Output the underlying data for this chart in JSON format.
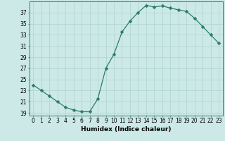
{
  "title": "",
  "xlabel": "Humidex (Indice chaleur)",
  "ylabel": "",
  "x": [
    0,
    1,
    2,
    3,
    4,
    5,
    6,
    7,
    8,
    9,
    10,
    11,
    12,
    13,
    14,
    15,
    16,
    17,
    18,
    19,
    20,
    21,
    22,
    23
  ],
  "y": [
    24,
    23,
    22,
    21,
    20,
    19.5,
    19.2,
    19.2,
    21.5,
    27,
    29.5,
    33.5,
    35.5,
    37,
    38.3,
    38,
    38.2,
    37.8,
    37.5,
    37.2,
    36,
    34.5,
    33,
    31.5
  ],
  "line_color": "#2d7a6e",
  "marker": "D",
  "marker_size": 2.5,
  "bg_color": "#cce9e7",
  "grid_color": "#aad4d0",
  "ylim": [
    18.5,
    39
  ],
  "xlim": [
    -0.5,
    23.5
  ],
  "yticks": [
    19,
    21,
    23,
    25,
    27,
    29,
    31,
    33,
    35,
    37
  ],
  "xticks": [
    0,
    1,
    2,
    3,
    4,
    5,
    6,
    7,
    8,
    9,
    10,
    11,
    12,
    13,
    14,
    15,
    16,
    17,
    18,
    19,
    20,
    21,
    22,
    23
  ],
  "tick_fontsize": 5.5,
  "label_fontsize": 6.5
}
